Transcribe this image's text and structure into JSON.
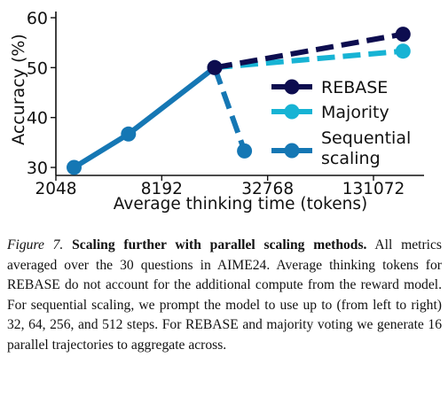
{
  "chart_data": {
    "type": "line",
    "xscale": "log2",
    "xlabel": "Average thinking time (tokens)",
    "ylabel": "Accuracy (%)",
    "xticks": [
      2048,
      8192,
      32768,
      131072
    ],
    "xtick_labels": [
      "2048",
      "8192",
      "32768",
      "131072"
    ],
    "yticks": [
      30,
      40,
      50,
      60
    ],
    "ytick_labels": [
      "30",
      "40",
      "50",
      "60"
    ],
    "xlim": [
      2048,
      262144
    ],
    "ylim": [
      29,
      60
    ],
    "grid": false,
    "legend_position": "center-right",
    "series": [
      {
        "name": "REBASE",
        "color": "#0d0d4f",
        "dashed": true,
        "points": [
          [
            16384,
            50.0
          ],
          [
            193000,
            56.7
          ]
        ]
      },
      {
        "name": "Majority",
        "color": "#17b3d4",
        "dashed": true,
        "points": [
          [
            16384,
            50.0
          ],
          [
            193000,
            53.3
          ]
        ]
      },
      {
        "name": "Sequential scaling",
        "legend_lines": [
          "Sequential",
          "scaling"
        ],
        "color": "#1577b4",
        "dashed": false,
        "points": [
          [
            2600,
            30.0
          ],
          [
            5300,
            36.7
          ],
          [
            16384,
            50.0
          ]
        ]
      }
    ],
    "extra_segments": [
      {
        "series": "Sequential scaling",
        "color": "#1577b4",
        "dashed": true,
        "points": [
          [
            16384,
            50.0
          ],
          [
            24200,
            33.3
          ]
        ]
      }
    ]
  },
  "caption": {
    "figure_label": "Figure 7.",
    "title": "Scaling further with parallel scaling methods.",
    "body": "All metrics averaged over the 30 questions in AIME24. Average thinking tokens for REBASE do not account for the additional compute from the reward model. For sequential scaling, we prompt the model to use up to (from left to right) 32, 64, 256, and 512 steps. For REBASE and majority voting we generate 16 parallel trajectories to aggregate across."
  }
}
